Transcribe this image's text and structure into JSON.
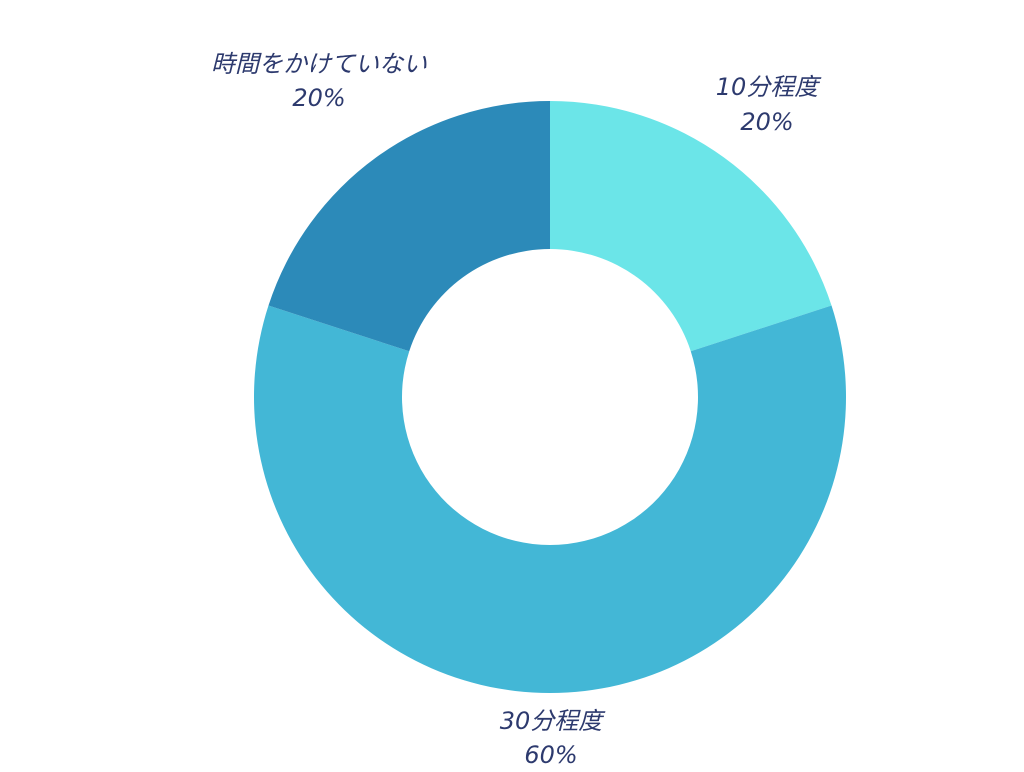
{
  "chart_data": {
    "type": "pie",
    "variant": "donut",
    "title": "",
    "slices": [
      {
        "label": "10分程度",
        "value": 20,
        "display": "20%",
        "color": "#6be5e8"
      },
      {
        "label": "30分程度",
        "value": 60,
        "display": "60%",
        "color": "#43b7d6"
      },
      {
        "label": "時間をかけていない",
        "value": 20,
        "display": "20%",
        "color": "#2c8ab9"
      }
    ],
    "start_angle": "12 o'clock",
    "direction": "clockwise",
    "legend": "none",
    "label_color": "#2d3a6e"
  }
}
